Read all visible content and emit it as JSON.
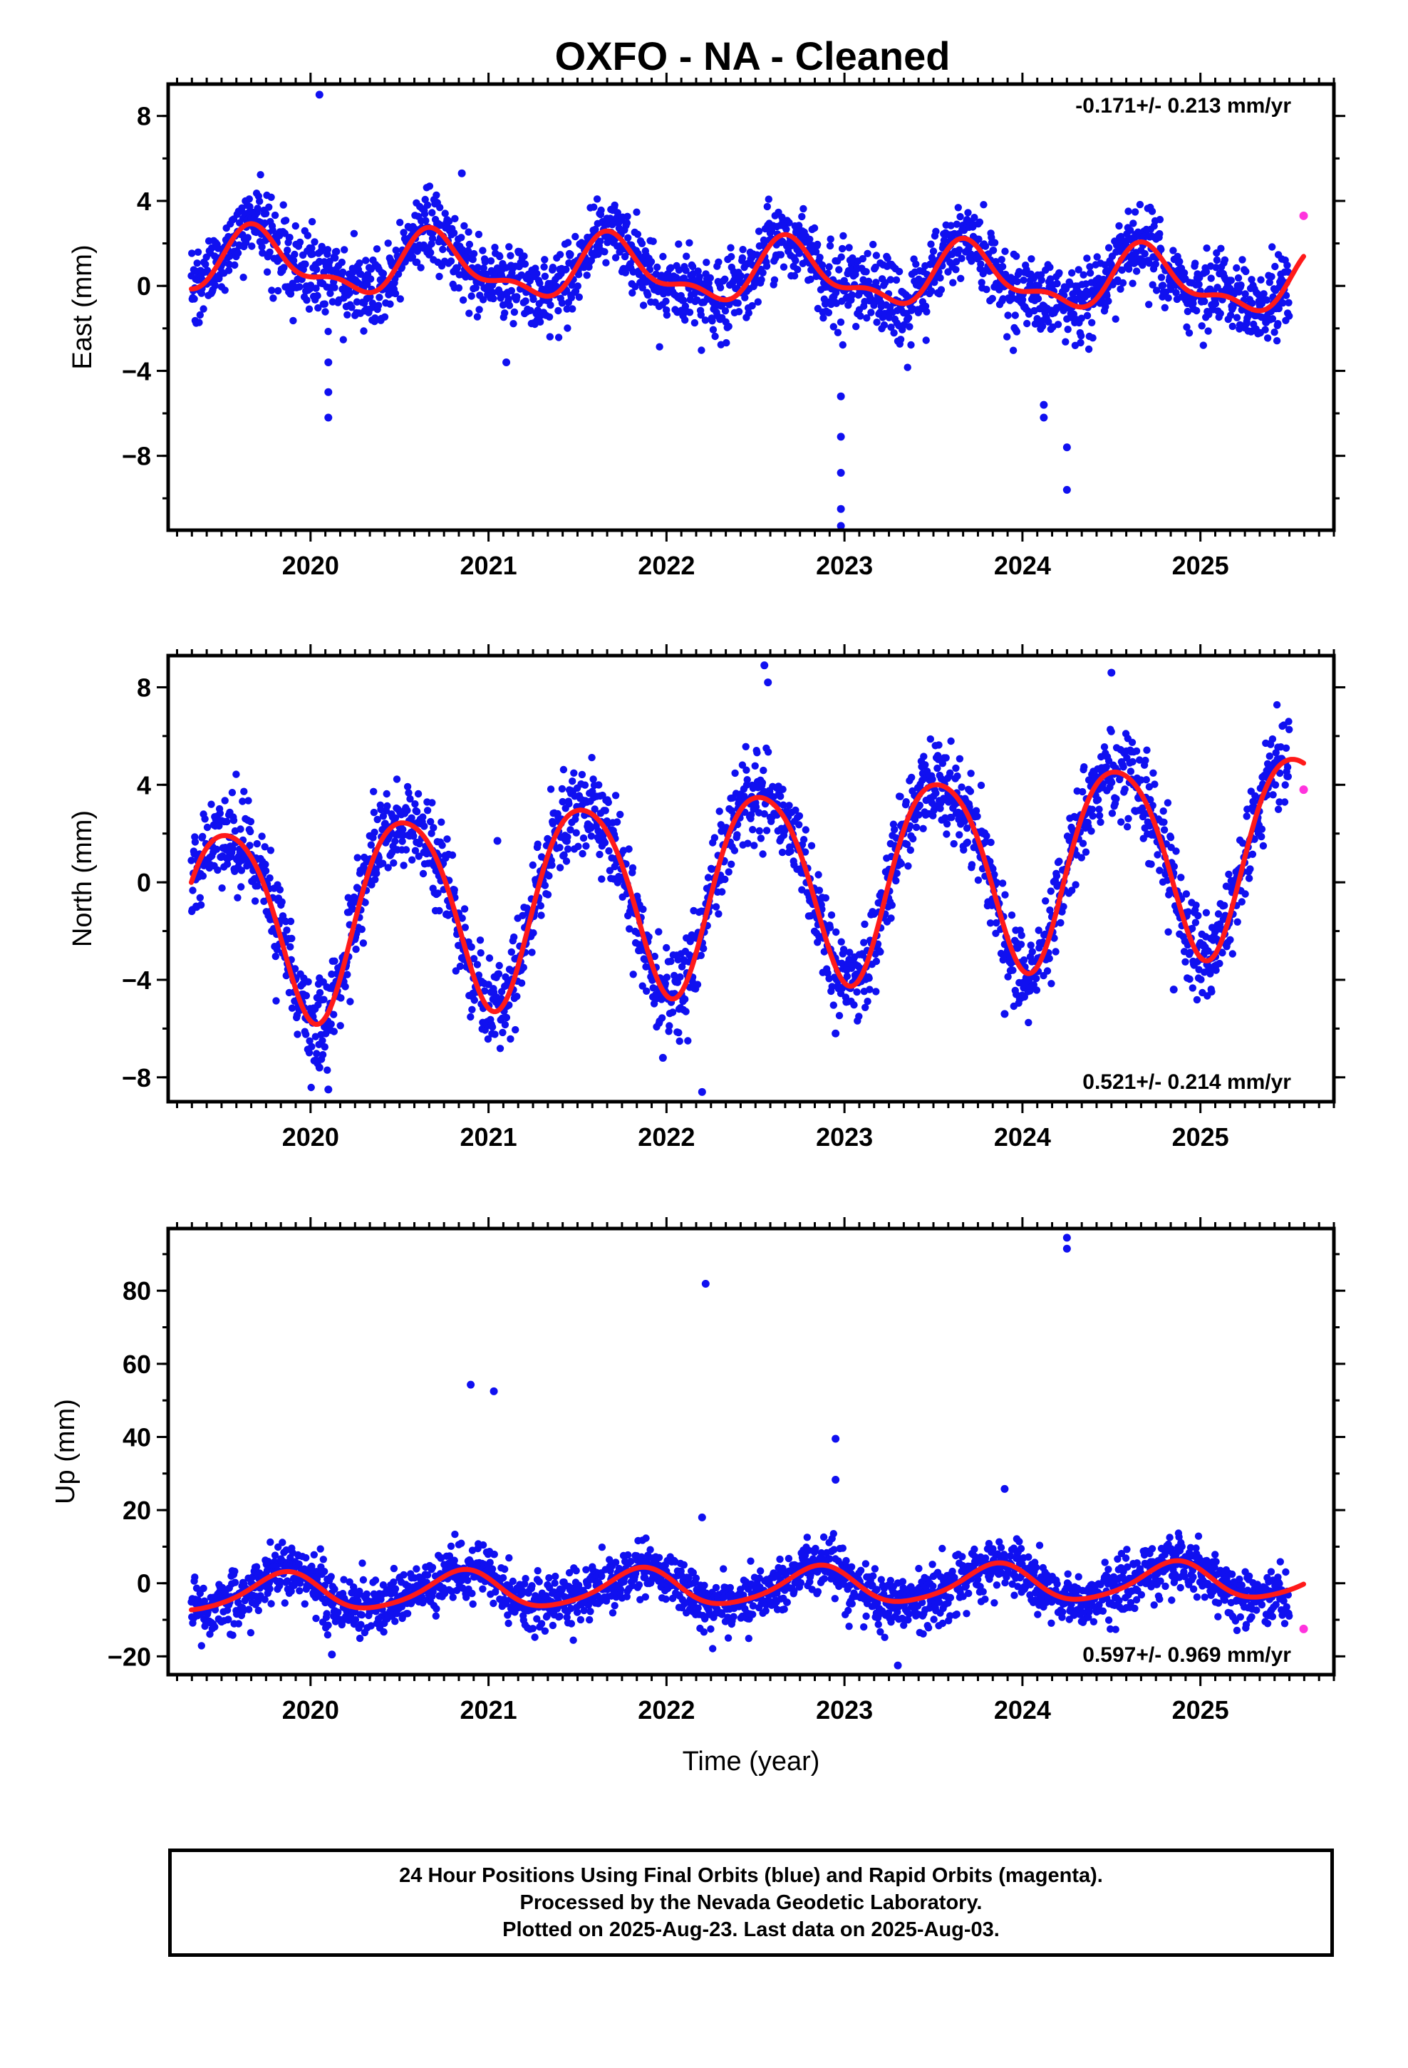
{
  "title": "OXFO  - NA - Cleaned",
  "colors": {
    "final_orbits": "#1010f0",
    "rapid_orbits": "#ff33dd",
    "fit": "#ff1a1a"
  },
  "footer": {
    "line1": "24 Hour Positions Using Final Orbits (blue) and Rapid Orbits (magenta).",
    "line2": "Processed by the Nevada Geodetic Laboratory.",
    "line3": "Plotted on 2025-Aug-23. Last data on 2025-Aug-03."
  },
  "chart_data": [
    {
      "type": "scatter",
      "id": "east",
      "ylabel": "East (mm)",
      "xlabel": "",
      "rate_text": "-0.171+/- 0.213 mm/yr",
      "rate_position": "top-right",
      "xlim": [
        2019.2,
        2025.75
      ],
      "ylim": [
        -11.5,
        9.5
      ],
      "x_ticks": [
        2020,
        2021,
        2022,
        2023,
        2024,
        2025
      ],
      "y_ticks": [
        -8,
        -4,
        0,
        4,
        8
      ],
      "y_tick_labels": [
        "−8",
        "−4",
        "0",
        "4",
        "8"
      ],
      "start": 2019.33,
      "end": 2025.5,
      "noise": 0.9,
      "trend": -0.171,
      "seasonal": {
        "amplitude": 1.3,
        "peak": 0.7,
        "amplitude2": 0.6,
        "peak2": 0.15
      },
      "offset": 0.6,
      "rapid": [
        [
          2025.58,
          3.3
        ]
      ],
      "outliers": [
        [
          2020.05,
          9.0
        ],
        [
          2020.1,
          -5.0
        ],
        [
          2020.1,
          -6.2
        ],
        [
          2020.1,
          -3.6
        ],
        [
          2020.85,
          5.3
        ],
        [
          2021.1,
          -3.6
        ],
        [
          2022.98,
          -5.2
        ],
        [
          2022.98,
          -7.1
        ],
        [
          2022.98,
          -8.8
        ],
        [
          2022.98,
          -10.5
        ],
        [
          2022.98,
          -11.3
        ],
        [
          2024.12,
          -5.6
        ],
        [
          2024.12,
          -6.2
        ],
        [
          2024.25,
          -7.6
        ],
        [
          2024.25,
          -9.6
        ]
      ]
    },
    {
      "type": "scatter",
      "id": "north",
      "ylabel": "North (mm)",
      "xlabel": "",
      "rate_text": "0.521+/- 0.214 mm/yr",
      "rate_position": "bottom-right",
      "xlim": [
        2019.2,
        2025.75
      ],
      "ylim": [
        -9,
        9.3
      ],
      "x_ticks": [
        2020,
        2021,
        2022,
        2023,
        2024,
        2025
      ],
      "y_ticks": [
        -8,
        -4,
        0,
        4,
        8
      ],
      "y_tick_labels": [
        "−8",
        "−4",
        "0",
        "4",
        "8"
      ],
      "start": 2019.33,
      "end": 2025.5,
      "noise": 0.9,
      "trend": 0.521,
      "seasonal": {
        "amplitude": 4.0,
        "peak": 0.53,
        "amplitude2": 0.5,
        "peak2": 0.3
      },
      "offset": -0.1,
      "rapid": [
        [
          2025.58,
          3.8
        ]
      ],
      "outliers": [
        [
          2020.05,
          -7.6
        ],
        [
          2020.1,
          -8.5
        ],
        [
          2021.05,
          1.7
        ],
        [
          2021.98,
          -7.2
        ],
        [
          2022.2,
          -8.6
        ],
        [
          2022.55,
          8.9
        ],
        [
          2022.57,
          8.2
        ],
        [
          2022.95,
          -6.2
        ],
        [
          2023.9,
          -5.4
        ],
        [
          2024.5,
          8.6
        ],
        [
          2024.85,
          -4.4
        ]
      ]
    },
    {
      "type": "scatter",
      "id": "up",
      "ylabel": "Up (mm)",
      "xlabel": "Time (year)",
      "rate_text": "0.597+/- 0.969 mm/yr",
      "rate_position": "bottom-right",
      "xlim": [
        2019.2,
        2025.75
      ],
      "ylim": [
        -25,
        97
      ],
      "x_ticks": [
        2020,
        2021,
        2022,
        2023,
        2024,
        2025
      ],
      "y_ticks": [
        -20,
        0,
        20,
        40,
        60,
        80
      ],
      "y_tick_labels": [
        "−20",
        "0",
        "20",
        "40",
        "60",
        "80"
      ],
      "start": 2019.33,
      "end": 2025.5,
      "noise": 3.8,
      "trend": 0.597,
      "seasonal": {
        "amplitude": 5.0,
        "peak": 0.85,
        "amplitude2": 0.8,
        "peak2": 0.4
      },
      "offset": -1.0,
      "rapid": [
        [
          2025.58,
          -12.5
        ]
      ],
      "outliers": [
        [
          2020.9,
          54.3
        ],
        [
          2021.03,
          52.5
        ],
        [
          2022.22,
          81.9
        ],
        [
          2022.95,
          39.5
        ],
        [
          2022.95,
          28.3
        ],
        [
          2024.25,
          94.5
        ],
        [
          2024.25,
          91.5
        ],
        [
          2023.9,
          25.8
        ],
        [
          2020.12,
          -19.5
        ],
        [
          2023.3,
          -22.5
        ],
        [
          2022.2,
          18.0
        ]
      ]
    }
  ]
}
